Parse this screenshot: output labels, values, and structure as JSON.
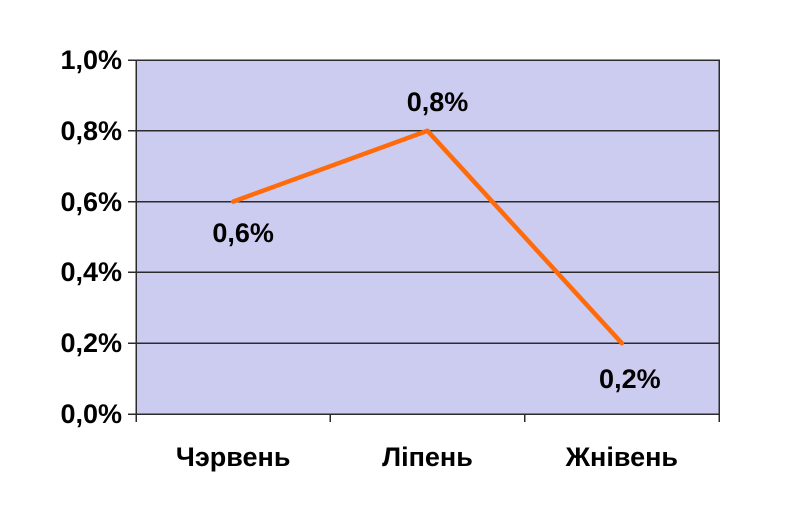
{
  "chart_data": {
    "type": "line",
    "title": "",
    "xlabel": "",
    "ylabel": "",
    "categories": [
      "Чэрвень",
      "Ліпень",
      "Жнівень"
    ],
    "values": [
      0.6,
      0.8,
      0.2
    ],
    "unit": "percent",
    "point_labels": [
      "0,6%",
      "0,8%",
      "0,2%"
    ],
    "point_label_positions": [
      "below",
      "above",
      "below"
    ],
    "y_axis": {
      "min": 0.0,
      "max": 1.0,
      "step": 0.2,
      "tick_labels": [
        "0,0%",
        "0,2%",
        "0,4%",
        "0,6%",
        "0,8%",
        "1,0%"
      ],
      "tick_values": [
        0.0,
        0.2,
        0.4,
        0.6,
        0.8,
        1.0
      ]
    },
    "grid": true,
    "legend": false,
    "colors": {
      "line": "#FF6B0A",
      "plot_background": "#CCCCF0",
      "gridline": "#2B2B2B",
      "border": "#2B2B2B",
      "text": "#000000",
      "page_background": "#FFFFFF"
    }
  }
}
